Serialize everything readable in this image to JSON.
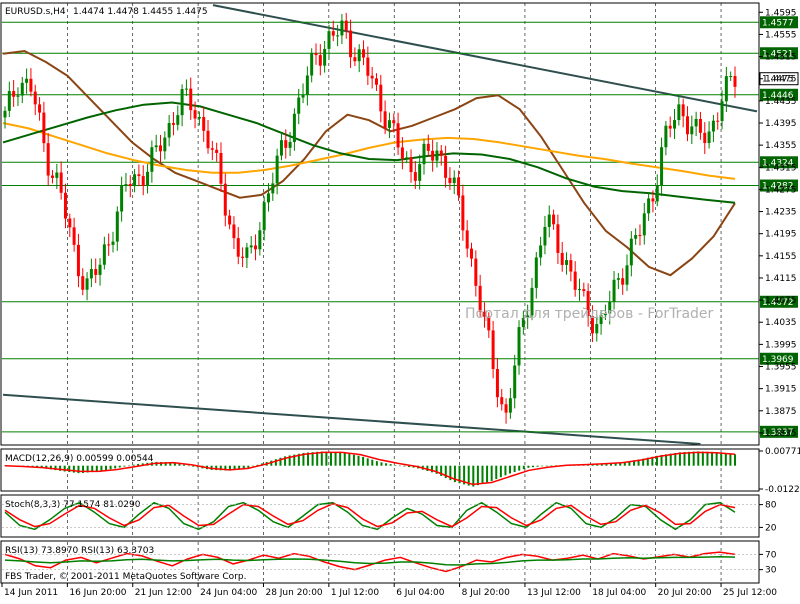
{
  "header": {
    "symbol": "EURUSD.s,H4",
    "ohlc": "1.4474 1.4478 1.4455 1.4475"
  },
  "watermark": "Портал для трейдеров - ForTrader",
  "footer": "FBS Trader, © 2001-2011 MetaQuotes Software Corp.",
  "colors": {
    "background": "#ffffff",
    "grid": "#000000",
    "bull": "#008000",
    "bear": "#ff0000",
    "line_dark": "#2f4f4f",
    "ma_orange": "#ffa500",
    "ma_brown": "#8b4513",
    "ma_green": "#006400",
    "level_line": "#008000"
  },
  "chart_data": [
    {
      "type": "line",
      "title": "EURUSD.s,H4",
      "description_printed": "1.4474 1.4478 1.4455 1.4475",
      "y_ticks": [
        "1.4595",
        "1.4555",
        "1.4515",
        "1.4475",
        "1.4435",
        "1.4395",
        "1.4355",
        "1.4315",
        "1.4275",
        "1.4235",
        "1.4195",
        "1.4155",
        "1.4115",
        "1.4075",
        "1.4035",
        "1.3995",
        "1.3955",
        "1.3915",
        "1.3875",
        "1.3835"
      ],
      "ylim": [
        1.3815,
        1.461
      ],
      "x_ticks": [
        "14 Jun 2011",
        "16 Jun 20:00",
        "21 Jun 12:00",
        "24 Jun 04:00",
        "28 Jun 20:00",
        "1 Jul 12:00",
        "6 Jul 04:00",
        "8 Jul 20:00",
        "13 Jul 12:00",
        "18 Jul 04:00",
        "20 Jul 20:00",
        "25 Jul 12:00"
      ],
      "level_labels": [
        {
          "price": 1.4577,
          "label": "1.4577"
        },
        {
          "price": 1.4521,
          "label": "1.4521"
        },
        {
          "price": 1.4475,
          "label": "1.4475"
        },
        {
          "price": 1.4446,
          "label": "1.4446"
        },
        {
          "price": 1.4324,
          "label": "1.4324"
        },
        {
          "price": 1.4282,
          "label": "1.4282"
        },
        {
          "price": 1.4072,
          "label": "1.4072"
        },
        {
          "price": 1.3969,
          "label": "1.3969"
        },
        {
          "price": 1.3837,
          "label": "1.3837"
        }
      ],
      "trendlines": [
        {
          "name": "upper trendline",
          "from": [
            0.0,
            1.4608
          ],
          "to": [
            1.0,
            1.4416
          ]
        },
        {
          "name": "lower trendline",
          "from": [
            0.0,
            1.3904
          ],
          "to": [
            0.925,
            1.3815
          ]
        }
      ],
      "price_path": [
        1.4405,
        1.4475,
        1.4455,
        1.434,
        1.428,
        1.417,
        1.41,
        1.4135,
        1.421,
        1.4285,
        1.43,
        1.433,
        1.438,
        1.444,
        1.442,
        1.437,
        1.428,
        1.4175,
        1.414,
        1.423,
        1.431,
        1.438,
        1.445,
        1.452,
        1.4545,
        1.4565,
        1.452,
        1.448,
        1.442,
        1.4355,
        1.431,
        1.433,
        1.4345,
        1.4295,
        1.42,
        1.409,
        1.3965,
        1.386,
        1.3995,
        1.411,
        1.422,
        1.4175,
        1.411,
        1.406,
        1.4025,
        1.409,
        1.415,
        1.42,
        1.428,
        1.438,
        1.4425,
        1.4375,
        1.437,
        1.444,
        1.4475
      ],
      "moving_averages": [
        {
          "color_key": "ma_brown",
          "values": [
            1.452,
            1.4525,
            1.4505,
            1.448,
            1.444,
            1.44,
            1.436,
            1.433,
            1.4305,
            1.429,
            1.4275,
            1.426,
            1.4265,
            1.429,
            1.433,
            1.438,
            1.441,
            1.44,
            1.438,
            1.439,
            1.4405,
            1.442,
            1.444,
            1.4445,
            1.442,
            1.437,
            1.431,
            1.425,
            1.42,
            1.417,
            1.4135,
            1.412,
            1.415,
            1.419,
            1.425
          ]
        },
        {
          "color_key": "ma_orange",
          "values": [
            1.4395,
            1.4385,
            1.437,
            1.4355,
            1.434,
            1.4328,
            1.4318,
            1.431,
            1.4305,
            1.4305,
            1.431,
            1.4318,
            1.4328,
            1.4338,
            1.435,
            1.436,
            1.4365,
            1.4368,
            1.4366,
            1.436,
            1.4352,
            1.4344,
            1.4336,
            1.433,
            1.4322,
            1.4315,
            1.4308,
            1.43,
            1.4294
          ]
        },
        {
          "color_key": "ma_green",
          "values": [
            1.436,
            1.4375,
            1.439,
            1.4405,
            1.4418,
            1.4428,
            1.4432,
            1.4425,
            1.441,
            1.4395,
            1.4375,
            1.4355,
            1.434,
            1.433,
            1.4328,
            1.4335,
            1.434,
            1.4338,
            1.433,
            1.4315,
            1.4295,
            1.428,
            1.4272,
            1.4268,
            1.4262,
            1.4256,
            1.4251
          ]
        }
      ]
    },
    {
      "type": "bar",
      "title": "MACD(12,26,9) 0.00599 0.00544",
      "y_ticks": [
        "0.00771",
        "-0.01222"
      ],
      "histogram": [
        0.0001,
        -0.0006,
        -0.0012,
        -0.0028,
        -0.004,
        -0.003,
        -0.0012,
        0.0008,
        0.002,
        0.0018,
        -0.0004,
        -0.0022,
        -0.0026,
        -0.001,
        0.002,
        0.005,
        0.0068,
        0.0075,
        0.007,
        0.005,
        0.002,
        0.0,
        -0.0012,
        -0.004,
        -0.0085,
        -0.011,
        -0.008,
        -0.004,
        -0.001,
        0.0,
        0.0004,
        0.0008,
        0.0012,
        0.0018,
        0.0035,
        0.0055,
        0.007,
        0.0075,
        0.0072,
        0.006
      ],
      "signal": [
        0.0,
        -0.0004,
        -0.001,
        -0.002,
        -0.003,
        -0.003,
        -0.002,
        -0.0004,
        0.0012,
        0.0016,
        0.0004,
        -0.0014,
        -0.0022,
        -0.0014,
        0.001,
        0.004,
        0.006,
        0.007,
        0.007,
        0.0058,
        0.0032,
        0.0012,
        -0.0004,
        -0.003,
        -0.007,
        -0.0098,
        -0.0088,
        -0.0056,
        -0.0024,
        -0.0008,
        0.0002,
        0.0006,
        0.001,
        0.0016,
        0.003,
        0.005,
        0.0064,
        0.007,
        0.0068,
        0.006
      ]
    },
    {
      "type": "line",
      "title": "Stoch(8,3,3) 77.1574 81.0290",
      "y_ticks": [
        "80",
        "20"
      ],
      "series": [
        {
          "color_key": "bull",
          "values": [
            60,
            25,
            15,
            40,
            70,
            85,
            60,
            30,
            20,
            55,
            85,
            70,
            30,
            15,
            35,
            75,
            85,
            65,
            35,
            20,
            50,
            80,
            85,
            60,
            25,
            15,
            45,
            70,
            55,
            25,
            20,
            65,
            85,
            60,
            30,
            20,
            55,
            85,
            70,
            30,
            20,
            45,
            80,
            75,
            40,
            15,
            40,
            80,
            85,
            60
          ]
        },
        {
          "color_key": "bear",
          "values": [
            65,
            40,
            22,
            30,
            55,
            78,
            70,
            45,
            25,
            40,
            72,
            78,
            50,
            25,
            28,
            55,
            80,
            75,
            50,
            28,
            38,
            65,
            82,
            72,
            42,
            22,
            32,
            58,
            62,
            40,
            22,
            45,
            75,
            72,
            45,
            25,
            40,
            70,
            78,
            50,
            28,
            35,
            65,
            78,
            58,
            28,
            30,
            62,
            80,
            72
          ]
        }
      ]
    },
    {
      "type": "line",
      "title": "RSI(13) 73.8970 RSI(13) 63.3703",
      "y_ticks": [
        "70",
        "30"
      ],
      "series": [
        {
          "color_key": "bear",
          "values": [
            70,
            58,
            40,
            35,
            55,
            62,
            48,
            60,
            72,
            66,
            52,
            40,
            58,
            70,
            62,
            45,
            55,
            68,
            60,
            72,
            65,
            50,
            38,
            30,
            42,
            55,
            62,
            48,
            35,
            25,
            38,
            55,
            50,
            62,
            70,
            65,
            55,
            60,
            68,
            58,
            72,
            66,
            58,
            64,
            70,
            63,
            72,
            76,
            70
          ]
        },
        {
          "color_key": "bull",
          "values": [
            55,
            53,
            50,
            48,
            50,
            53,
            52,
            53,
            56,
            57,
            55,
            53,
            54,
            56,
            57,
            55,
            54,
            56,
            57,
            58,
            57,
            55,
            52,
            48,
            46,
            47,
            50,
            50,
            47,
            43,
            42,
            45,
            46,
            49,
            53,
            55,
            55,
            56,
            58,
            58,
            60,
            61,
            60,
            61,
            62,
            62,
            63,
            64,
            63
          ]
        }
      ]
    }
  ]
}
